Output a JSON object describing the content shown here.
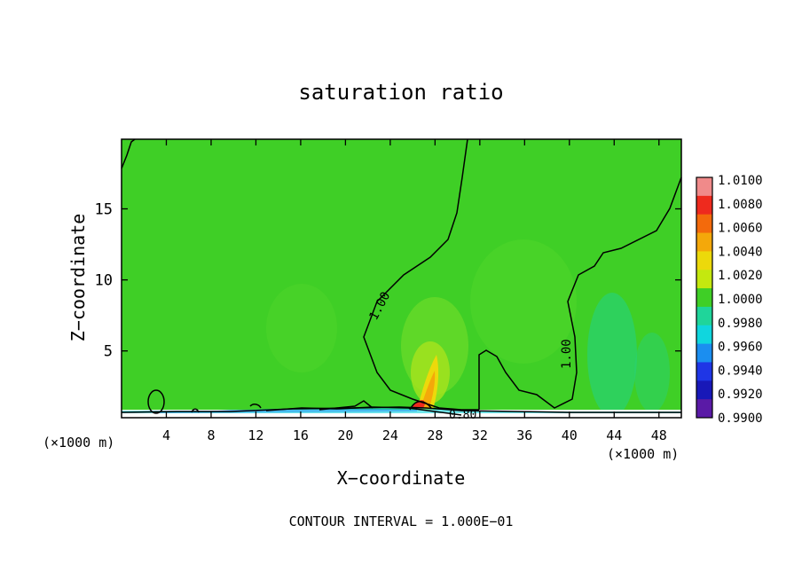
{
  "chart_data": {
    "type": "heatmap",
    "title": "saturation ratio",
    "xlabel": "X−coordinate",
    "ylabel": "Z−coordinate",
    "x_unit_left": "(×1000 m)",
    "x_unit_right": "(×1000 m)",
    "footer": "CONTOUR INTERVAL = 1.000E−01",
    "xlim": [
      0,
      50
    ],
    "ylim": [
      0.3,
      19.9
    ],
    "x_ticks": [
      4,
      8,
      12,
      16,
      20,
      24,
      28,
      32,
      36,
      40,
      44,
      48
    ],
    "y_ticks": [
      5,
      10,
      15
    ],
    "colorbar": {
      "min": 0.99,
      "max": 1.01,
      "labels": [
        "1.0100",
        "1.0080",
        "1.0060",
        "1.0040",
        "1.0020",
        "1.0000",
        "0.9980",
        "0.9960",
        "0.9940",
        "0.9920",
        "0.9900"
      ],
      "colors": [
        "#f08a8a",
        "#ee2a1e",
        "#f36a0c",
        "#f4a80a",
        "#ecd90b",
        "#c4e80f",
        "#3fcf26",
        "#1fd59a",
        "#10d6de",
        "#1b8ef0",
        "#1f36e6",
        "#1818b8",
        "#5a1aa6"
      ]
    },
    "background_value": 1.0,
    "contour_labels": [
      "1.00",
      "1.00",
      "0.80"
    ]
  }
}
